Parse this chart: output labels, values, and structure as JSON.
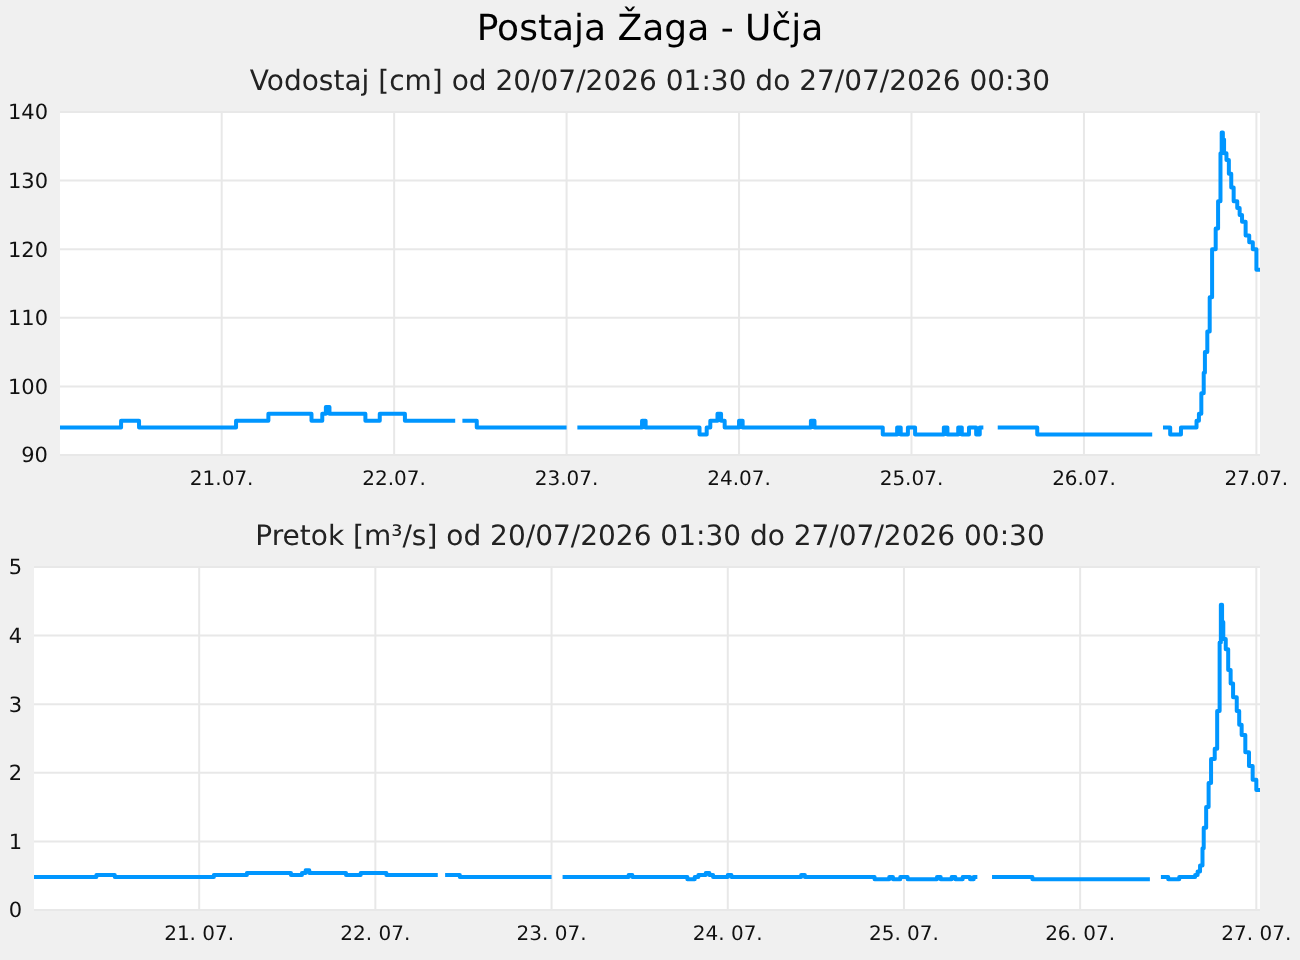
{
  "chart_data": [
    {
      "type": "step",
      "title": "Postaja Žaga - Učja",
      "subtitle": "Vodostaj [cm] od 20/07/2026 01:30 do 27/07/2026 00:30",
      "x": [
        "2026-07-20T01:30",
        "2026-07-20T10:00",
        "2026-07-20T12:30",
        "2026-07-21T02:00",
        "2026-07-21T06:30",
        "2026-07-21T12:30",
        "2026-07-21T14:00",
        "2026-07-21T14:30",
        "2026-07-21T15:00",
        "2026-07-21T20:00",
        "2026-07-21T22:00",
        "2026-07-22T01:30",
        "2026-07-22T08:30",
        "2026-07-22T09:30",
        "2026-07-22T11:30",
        "2026-07-23T00:00",
        "2026-07-23T01:30",
        "2026-07-23T10:30",
        "2026-07-23T11:00",
        "2026-07-23T18:30",
        "2026-07-23T19:30",
        "2026-07-23T20:00",
        "2026-07-23T21:00",
        "2026-07-23T21:30",
        "2026-07-23T22:00",
        "2026-07-24T00:00",
        "2026-07-24T00:30",
        "2026-07-24T10:00",
        "2026-07-24T10:30",
        "2026-07-24T20:00",
        "2026-07-24T22:00",
        "2026-07-24T22:30",
        "2026-07-24T23:30",
        "2026-07-25T00:30",
        "2026-07-25T04:30",
        "2026-07-25T05:00",
        "2026-07-25T06:30",
        "2026-07-25T07:00",
        "2026-07-25T08:00",
        "2026-07-25T09:00",
        "2026-07-25T09:30",
        "2026-07-25T10:00",
        "2026-07-25T12:00",
        "2026-07-25T17:30",
        "2026-07-26T09:30",
        "2026-07-26T11:00",
        "2026-07-26T12:00",
        "2026-07-26T13:30",
        "2026-07-26T15:40",
        "2026-07-26T16:00",
        "2026-07-26T16:20",
        "2026-07-26T16:40",
        "2026-07-26T16:50",
        "2026-07-26T17:10",
        "2026-07-26T17:30",
        "2026-07-26T17:50",
        "2026-07-26T18:20",
        "2026-07-26T18:40",
        "2026-07-26T19:00",
        "2026-07-26T19:10",
        "2026-07-26T19:20",
        "2026-07-26T19:30",
        "2026-07-26T19:50",
        "2026-07-26T20:10",
        "2026-07-26T20:30",
        "2026-07-26T20:50",
        "2026-07-26T21:20",
        "2026-07-26T21:40",
        "2026-07-26T22:00",
        "2026-07-26T22:30",
        "2026-07-26T23:00",
        "2026-07-26T23:30",
        "2026-07-27T00:00",
        "2026-07-27T00:30"
      ],
      "values": [
        94,
        95,
        94,
        95,
        96,
        95,
        96,
        97,
        96,
        95,
        96,
        95,
        null,
        95,
        94,
        null,
        94,
        95,
        94,
        93,
        94,
        95,
        96,
        95,
        94,
        95,
        94,
        95,
        94,
        93,
        94,
        93,
        94,
        93,
        94,
        93,
        94,
        93,
        94,
        93,
        94,
        null,
        94,
        93,
        null,
        94,
        93,
        94,
        95,
        96,
        99,
        102,
        105,
        108,
        113,
        120,
        123,
        127,
        134,
        137,
        136,
        134,
        133,
        131,
        129,
        127,
        126,
        125,
        124,
        122,
        121,
        120,
        117,
        117
      ],
      "color": "#0096ff",
      "xlim": [
        "2026-07-20T01:30",
        "2026-07-27T00:30"
      ],
      "xticks": [
        {
          "value": "2026-07-21",
          "label": "21.07."
        },
        {
          "value": "2026-07-22",
          "label": "22.07."
        },
        {
          "value": "2026-07-23",
          "label": "23.07."
        },
        {
          "value": "2026-07-24",
          "label": "24.07."
        },
        {
          "value": "2026-07-25",
          "label": "25.07."
        },
        {
          "value": "2026-07-26",
          "label": "26.07."
        },
        {
          "value": "2026-07-27",
          "label": "27.07."
        }
      ],
      "ylim": [
        90,
        140
      ],
      "yticks": [
        90,
        100,
        110,
        120,
        130,
        140
      ],
      "grid": true
    },
    {
      "type": "step",
      "subtitle": "Pretok [m³/s] od 20/07/2026 01:30 do 27/07/2026 00:30",
      "x": [
        "2026-07-20T01:30",
        "2026-07-20T10:00",
        "2026-07-20T12:30",
        "2026-07-21T02:00",
        "2026-07-21T06:30",
        "2026-07-21T12:30",
        "2026-07-21T14:00",
        "2026-07-21T14:30",
        "2026-07-21T15:00",
        "2026-07-21T20:00",
        "2026-07-21T22:00",
        "2026-07-22T01:30",
        "2026-07-22T08:30",
        "2026-07-22T09:30",
        "2026-07-22T11:30",
        "2026-07-23T00:00",
        "2026-07-23T01:30",
        "2026-07-23T10:30",
        "2026-07-23T11:00",
        "2026-07-23T18:30",
        "2026-07-23T19:30",
        "2026-07-23T20:00",
        "2026-07-23T21:00",
        "2026-07-23T21:30",
        "2026-07-23T22:00",
        "2026-07-24T00:00",
        "2026-07-24T00:30",
        "2026-07-24T10:00",
        "2026-07-24T10:30",
        "2026-07-24T20:00",
        "2026-07-24T22:00",
        "2026-07-24T22:30",
        "2026-07-24T23:30",
        "2026-07-25T00:30",
        "2026-07-25T04:30",
        "2026-07-25T05:00",
        "2026-07-25T06:30",
        "2026-07-25T07:00",
        "2026-07-25T08:00",
        "2026-07-25T09:00",
        "2026-07-25T09:30",
        "2026-07-25T10:00",
        "2026-07-25T12:00",
        "2026-07-25T17:30",
        "2026-07-26T09:30",
        "2026-07-26T11:00",
        "2026-07-26T12:00",
        "2026-07-26T13:30",
        "2026-07-26T15:40",
        "2026-07-26T16:00",
        "2026-07-26T16:20",
        "2026-07-26T16:40",
        "2026-07-26T16:50",
        "2026-07-26T17:10",
        "2026-07-26T17:30",
        "2026-07-26T17:50",
        "2026-07-26T18:20",
        "2026-07-26T18:40",
        "2026-07-26T19:00",
        "2026-07-26T19:10",
        "2026-07-26T19:20",
        "2026-07-26T19:30",
        "2026-07-26T19:50",
        "2026-07-26T20:10",
        "2026-07-26T20:30",
        "2026-07-26T20:50",
        "2026-07-26T21:20",
        "2026-07-26T21:40",
        "2026-07-26T22:00",
        "2026-07-26T22:30",
        "2026-07-26T23:00",
        "2026-07-26T23:30",
        "2026-07-27T00:00",
        "2026-07-27T00:30"
      ],
      "values": [
        0.48,
        0.51,
        0.48,
        0.51,
        0.54,
        0.51,
        0.54,
        0.58,
        0.54,
        0.51,
        0.54,
        0.51,
        null,
        0.51,
        0.48,
        null,
        0.48,
        0.51,
        0.48,
        0.45,
        0.48,
        0.51,
        0.54,
        0.51,
        0.48,
        0.51,
        0.48,
        0.51,
        0.48,
        0.45,
        0.48,
        0.45,
        0.48,
        0.45,
        0.48,
        0.45,
        0.48,
        0.45,
        0.48,
        0.45,
        0.48,
        null,
        0.48,
        0.45,
        null,
        0.48,
        0.45,
        0.48,
        0.51,
        0.56,
        0.65,
        0.9,
        1.2,
        1.5,
        1.85,
        2.2,
        2.35,
        2.9,
        3.9,
        4.45,
        4.2,
        3.95,
        3.8,
        3.5,
        3.3,
        3.1,
        2.9,
        2.7,
        2.55,
        2.3,
        2.1,
        1.9,
        1.75,
        1.75
      ],
      "color": "#0096ff",
      "xlim": [
        "2026-07-20T01:30",
        "2026-07-27T00:30"
      ],
      "xticks": [
        {
          "value": "2026-07-21",
          "label": "21. 07."
        },
        {
          "value": "2026-07-22",
          "label": "22. 07."
        },
        {
          "value": "2026-07-23",
          "label": "23. 07."
        },
        {
          "value": "2026-07-24",
          "label": "24. 07."
        },
        {
          "value": "2026-07-25",
          "label": "25. 07."
        },
        {
          "value": "2026-07-26",
          "label": "26. 07."
        },
        {
          "value": "2026-07-27",
          "label": "27. 07."
        }
      ],
      "ylim": [
        0,
        5
      ],
      "yticks": [
        0,
        1,
        2,
        3,
        4,
        5
      ],
      "grid": true
    }
  ]
}
